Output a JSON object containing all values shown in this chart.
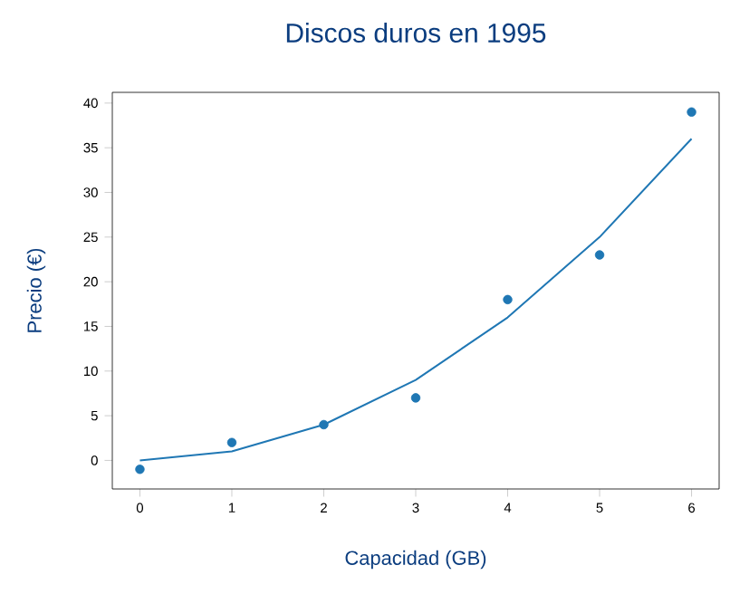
{
  "chart_data": {
    "type": "scatter",
    "title": "Discos duros en 1995",
    "xlabel": "Capacidad (GB)",
    "ylabel": "Precio (€)",
    "x": [
      0,
      1,
      2,
      3,
      4,
      5,
      6
    ],
    "series": [
      {
        "color": "#1f77b4",
        "marker": "circle",
        "values": [
          -1,
          2,
          4,
          7,
          18,
          23,
          39
        ]
      },
      {
        "type": "line",
        "color": "#1f77b4",
        "marker": "none",
        "values": [
          0,
          1,
          4,
          9,
          16,
          25,
          36
        ]
      }
    ],
    "xlim": [
      -0.3,
      6.3
    ],
    "ylim": [
      -3.2,
      41.2
    ],
    "xticks": [
      0,
      1,
      2,
      3,
      4,
      5,
      6
    ],
    "yticks": [
      0,
      5,
      10,
      15,
      20,
      25,
      30,
      35,
      40
    ],
    "grid": false
  }
}
